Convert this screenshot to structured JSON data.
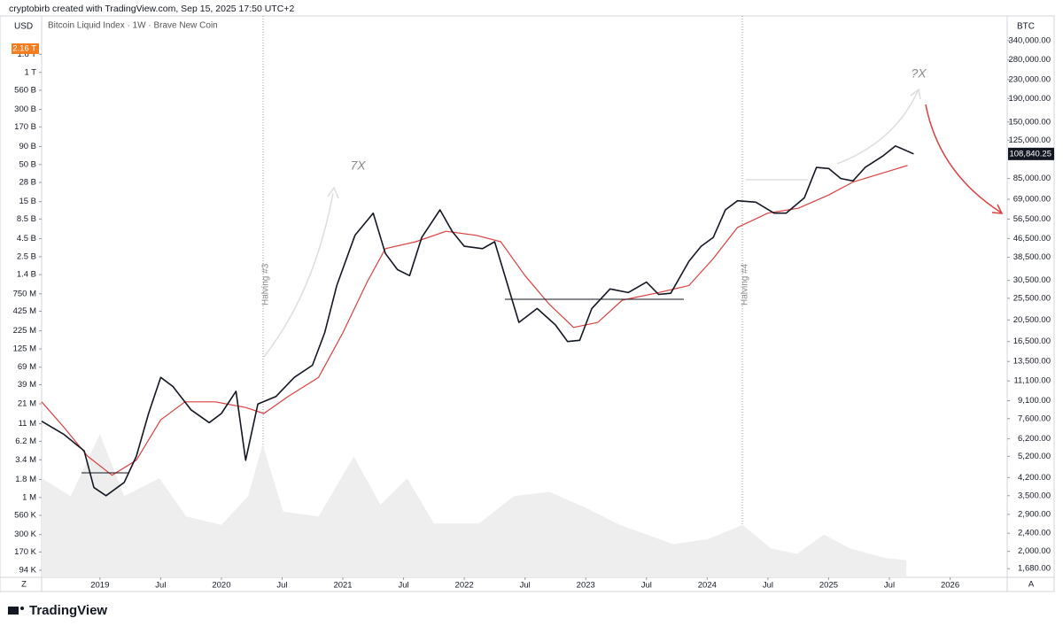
{
  "header": "cryptobirb created with TradingView.com, Sep 15, 2025 17:50 UTC+2",
  "brand": "TradingView",
  "chart_data": {
    "type": "line",
    "title": "Bitcoin Liquid Index · 1W · Brave New Coin",
    "left_unit": "USD",
    "right_unit": "BTC",
    "corner_left": "Z",
    "corner_right": "A",
    "log_scale": true,
    "xlim": [
      2018.52,
      2026.47
    ],
    "xticks": [
      {
        "value": 2019,
        "label": "2019"
      },
      {
        "value": 2019.5,
        "label": "Jul"
      },
      {
        "value": 2020,
        "label": "2020"
      },
      {
        "value": 2020.5,
        "label": "Jul"
      },
      {
        "value": 2021,
        "label": "2021"
      },
      {
        "value": 2021.5,
        "label": "Jul"
      },
      {
        "value": 2022,
        "label": "2022"
      },
      {
        "value": 2022.5,
        "label": "Jul"
      },
      {
        "value": 2023,
        "label": "2023"
      },
      {
        "value": 2023.5,
        "label": "Jul"
      },
      {
        "value": 2024,
        "label": "2024"
      },
      {
        "value": 2024.5,
        "label": "Jul"
      },
      {
        "value": 2025,
        "label": "2025"
      },
      {
        "value": 2025.5,
        "label": "Jul"
      },
      {
        "value": 2026,
        "label": "2026"
      }
    ],
    "ylim": [
      1540,
      436000
    ],
    "yticks": [
      {
        "value": 340000,
        "label": "340,000.00"
      },
      {
        "value": 280000,
        "label": "280,000.00"
      },
      {
        "value": 230000,
        "label": "230,000.00"
      },
      {
        "value": 190000,
        "label": "190,000.00"
      },
      {
        "value": 150000,
        "label": "150,000.00"
      },
      {
        "value": 125000,
        "label": "125,000.00"
      },
      {
        "value": 85000,
        "label": "85,000.00"
      },
      {
        "value": 69000,
        "label": "69,000.00"
      },
      {
        "value": 56500,
        "label": "56,500.00"
      },
      {
        "value": 46500,
        "label": "46,500.00"
      },
      {
        "value": 38500,
        "label": "38,500.00"
      },
      {
        "value": 30500,
        "label": "30,500.00"
      },
      {
        "value": 25500,
        "label": "25,500.00"
      },
      {
        "value": 20500,
        "label": "20,500.00"
      },
      {
        "value": 16500,
        "label": "16,500.00"
      },
      {
        "value": 13500,
        "label": "13,500.00"
      },
      {
        "value": 11100,
        "label": "11,100.00"
      },
      {
        "value": 9100,
        "label": "9,100.00"
      },
      {
        "value": 7600,
        "label": "7,600.00"
      },
      {
        "value": 6200,
        "label": "6,200.00"
      },
      {
        "value": 5200,
        "label": "5,200.00"
      },
      {
        "value": 4200,
        "label": "4,200.00"
      },
      {
        "value": 3500,
        "label": "3,500.00"
      },
      {
        "value": 2900,
        "label": "2,900.00"
      },
      {
        "value": 2400,
        "label": "2,400.00"
      },
      {
        "value": 2000,
        "label": "2,000.00"
      },
      {
        "value": 1680,
        "label": "1,680.00"
      }
    ],
    "y2lim": [
      74700,
      6260000000000
    ],
    "y2ticks": [
      {
        "value": 1800000000000,
        "label": "1.8 T"
      },
      {
        "value": 1000000000000,
        "label": "1 T"
      },
      {
        "value": 560000000000,
        "label": "560 B"
      },
      {
        "value": 300000000000,
        "label": "300 B"
      },
      {
        "value": 170000000000,
        "label": "170 B"
      },
      {
        "value": 90000000000,
        "label": "90 B"
      },
      {
        "value": 50000000000,
        "label": "50 B"
      },
      {
        "value": 28000000000,
        "label": "28 B"
      },
      {
        "value": 15000000000,
        "label": "15 B"
      },
      {
        "value": 8500000000,
        "label": "8.5 B"
      },
      {
        "value": 4500000000,
        "label": "4.5 B"
      },
      {
        "value": 2500000000,
        "label": "2.5 B"
      },
      {
        "value": 1400000000,
        "label": "1.4 B"
      },
      {
        "value": 750000000,
        "label": "750 M"
      },
      {
        "value": 425000000,
        "label": "425 M"
      },
      {
        "value": 225000000,
        "label": "225 M"
      },
      {
        "value": 125000000,
        "label": "125 M"
      },
      {
        "value": 69000000,
        "label": "69 M"
      },
      {
        "value": 39000000,
        "label": "39 M"
      },
      {
        "value": 21000000,
        "label": "21 M"
      },
      {
        "value": 11000000,
        "label": "11 M"
      },
      {
        "value": 6200000,
        "label": "6.2 M"
      },
      {
        "value": 3400000,
        "label": "3.4 M"
      },
      {
        "value": 1800000,
        "label": "1.8 M"
      },
      {
        "value": 1000000,
        "label": "1 M"
      },
      {
        "value": 560000,
        "label": "560 K"
      },
      {
        "value": 300000,
        "label": "300 K"
      },
      {
        "value": 170000,
        "label": "170 K"
      },
      {
        "value": 94000,
        "label": "94 K"
      }
    ],
    "y2_last": {
      "value": 2160000000000,
      "label": "2.16 T"
    },
    "last": {
      "value": 108840.25,
      "label": "108,840.25"
    },
    "series": [
      {
        "kind": "volume",
        "axis": "y2",
        "color": "#eeeeee",
        "x": [
          2018.52,
          2018.76,
          2019.0,
          2019.2,
          2019.49,
          2019.71,
          2020.0,
          2020.22,
          2020.34,
          2020.51,
          2020.8,
          2021.09,
          2021.31,
          2021.53,
          2021.75,
          2022.12,
          2022.41,
          2022.7,
          2022.99,
          2023.28,
          2023.72,
          2024.01,
          2024.29,
          2024.53,
          2024.74,
          2024.96,
          2025.18,
          2025.47,
          2025.64
        ],
        "values": [
          1870000,
          1050000,
          7900000,
          1050000,
          1870000,
          540000,
          410000,
          1050000,
          5600000,
          630000,
          540000,
          3800000,
          790000,
          1870000,
          430000,
          430000,
          1050000,
          1200000,
          730000,
          410000,
          220000,
          260000,
          410000,
          190000,
          160000,
          300000,
          190000,
          140000,
          130000
        ]
      },
      {
        "kind": "ma",
        "color": "#d9403f",
        "x": [
          2018.52,
          2018.7,
          2018.9,
          2019.1,
          2019.3,
          2019.5,
          2019.7,
          2019.95,
          2020.2,
          2020.35,
          2020.55,
          2020.8,
          2021.0,
          2021.2,
          2021.35,
          2021.6,
          2021.85,
          2022.1,
          2022.3,
          2022.5,
          2022.7,
          2022.9,
          2023.1,
          2023.3,
          2023.6,
          2023.85,
          2024.05,
          2024.25,
          2024.5,
          2024.75,
          2025.0,
          2025.2,
          2025.45,
          2025.65
        ],
        "values": [
          9000,
          7000,
          5200,
          4300,
          5000,
          7500,
          9000,
          9000,
          8500,
          8000,
          9500,
          11500,
          18000,
          30000,
          42000,
          45000,
          50000,
          48000,
          45000,
          32000,
          24000,
          19000,
          20000,
          25000,
          27000,
          29000,
          38000,
          52000,
          60000,
          63000,
          72000,
          82000,
          90000,
          97000
        ]
      },
      {
        "kind": "price",
        "color": "#131722",
        "x": [
          2018.52,
          2018.7,
          2018.87,
          2018.95,
          2019.05,
          2019.2,
          2019.3,
          2019.4,
          2019.5,
          2019.6,
          2019.75,
          2019.9,
          2020.0,
          2020.12,
          2020.2,
          2020.3,
          2020.45,
          2020.6,
          2020.75,
          2020.85,
          2020.95,
          2021.1,
          2021.25,
          2021.35,
          2021.45,
          2021.55,
          2021.65,
          2021.8,
          2021.9,
          2022.0,
          2022.15,
          2022.25,
          2022.35,
          2022.45,
          2022.6,
          2022.75,
          2022.85,
          2022.95,
          2023.05,
          2023.2,
          2023.35,
          2023.5,
          2023.6,
          2023.7,
          2023.85,
          2023.95,
          2024.05,
          2024.15,
          2024.25,
          2024.4,
          2024.55,
          2024.65,
          2024.8,
          2024.9,
          2025.0,
          2025.1,
          2025.2,
          2025.3,
          2025.45,
          2025.55,
          2025.7
        ],
        "values": [
          7400,
          6500,
          5500,
          3800,
          3500,
          4000,
          5200,
          8000,
          11500,
          10500,
          8300,
          7300,
          8000,
          10000,
          5000,
          8800,
          9500,
          11500,
          13000,
          18000,
          29000,
          48000,
          60000,
          40000,
          34000,
          32000,
          47000,
          62000,
          50000,
          43000,
          42000,
          45000,
          30000,
          20000,
          23000,
          19500,
          16500,
          16700,
          23000,
          28000,
          27000,
          30000,
          26500,
          26800,
          37000,
          43000,
          47000,
          62000,
          68000,
          67000,
          60000,
          60000,
          70000,
          95000,
          94000,
          85000,
          83000,
          95000,
          107000,
          118000,
          108840
        ]
      }
    ],
    "annotations": [
      "7X",
      "?X",
      "Halving #3",
      "Halving #4"
    ]
  }
}
